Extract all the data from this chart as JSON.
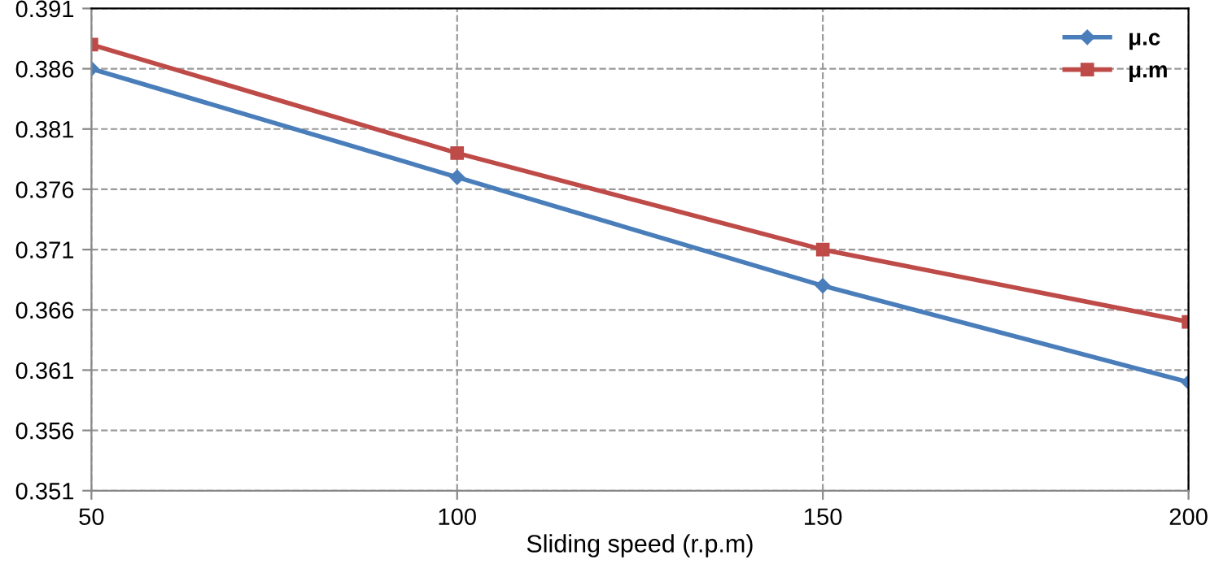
{
  "chart_data": {
    "type": "line",
    "xlabel": "Sliding speed (r.p.m)",
    "x": [
      50,
      100,
      150,
      200
    ],
    "series": [
      {
        "name": "μ.c",
        "color": "#4a7ebb",
        "marker": "diamond",
        "values": [
          0.386,
          0.377,
          0.368,
          0.36
        ]
      },
      {
        "name": "μ.m",
        "color": "#be4b48",
        "marker": "square",
        "values": [
          0.388,
          0.379,
          0.371,
          0.365
        ]
      }
    ],
    "xlim": [
      50,
      200
    ],
    "xticks": [
      50,
      100,
      150,
      200
    ],
    "ylim": [
      0.351,
      0.391
    ],
    "yticks": [
      0.351,
      0.356,
      0.361,
      0.366,
      0.371,
      0.376,
      0.381,
      0.386,
      0.391
    ],
    "grid": true,
    "legend": "top right",
    "line_style": "solid"
  }
}
